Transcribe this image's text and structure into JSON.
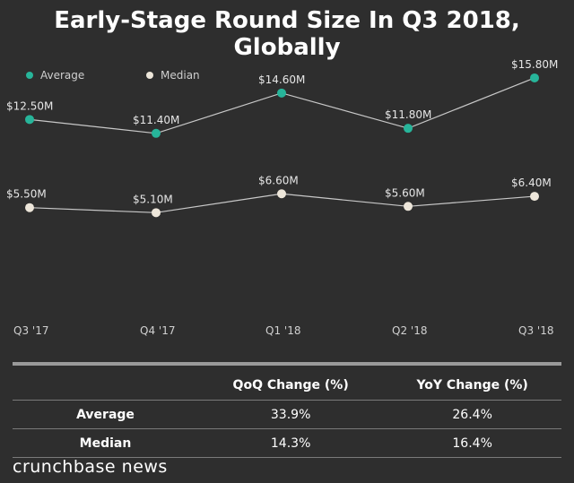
{
  "title": "Early-Stage Round Size In Q3 2018, Globally",
  "chart_data": {
    "type": "line",
    "categories": [
      "Q3 '17",
      "Q4 '17",
      "Q1 '18",
      "Q2 '18",
      "Q3 '18"
    ],
    "series": [
      {
        "name": "Average",
        "color": "#27b59a",
        "values": [
          12.5,
          11.4,
          14.6,
          11.8,
          15.8
        ],
        "labels": [
          "$12.50M",
          "$11.40M",
          "$14.60M",
          "$11.80M",
          "$15.80M"
        ]
      },
      {
        "name": "Median",
        "color": "#ede6da",
        "values": [
          5.5,
          5.1,
          6.6,
          5.6,
          6.4
        ],
        "labels": [
          "$5.50M",
          "$5.10M",
          "$6.60M",
          "$5.60M",
          "$6.40M"
        ]
      }
    ],
    "legend_position": "top-left",
    "grid": false,
    "ylim": [
      0,
      19
    ]
  },
  "table": {
    "headers": [
      "",
      "QoQ Change (%)",
      "YoY Change (%)"
    ],
    "rows": [
      {
        "label": "Average",
        "qoq": "33.9%",
        "yoy": "26.4%"
      },
      {
        "label": "Median",
        "qoq": "14.3%",
        "yoy": "16.4%"
      }
    ]
  },
  "brand": "crunchbase news"
}
